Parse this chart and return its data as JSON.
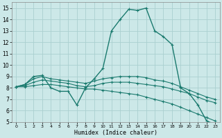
{
  "xlabel": "Humidex (Indice chaleur)",
  "ylabel": "",
  "bg_color": "#cce8e8",
  "grid_color": "#aad0d0",
  "line_color": "#1a7a6e",
  "xlim": [
    -0.5,
    23.5
  ],
  "ylim": [
    5,
    15.5
  ],
  "xticks": [
    0,
    1,
    2,
    3,
    4,
    5,
    6,
    7,
    8,
    9,
    10,
    11,
    12,
    13,
    14,
    15,
    16,
    17,
    18,
    19,
    20,
    21,
    22,
    23
  ],
  "yticks": [
    5,
    6,
    7,
    8,
    9,
    10,
    11,
    12,
    13,
    14,
    15
  ],
  "lines": [
    {
      "x": [
        0,
        1,
        2,
        3,
        4,
        5,
        6,
        7,
        8,
        9,
        10,
        11,
        12,
        13,
        14,
        15,
        16,
        17,
        18,
        19,
        20,
        21,
        22,
        23
      ],
      "y": [
        8.1,
        8.3,
        9.0,
        9.1,
        8.0,
        7.7,
        7.7,
        6.5,
        8.0,
        8.8,
        9.7,
        13.0,
        14.0,
        14.9,
        14.8,
        15.0,
        13.0,
        12.5,
        11.8,
        8.0,
        7.5,
        6.5,
        5.1,
        4.8
      ]
    },
    {
      "x": [
        0,
        1,
        2,
        3,
        4,
        5,
        6,
        7,
        8,
        9,
        10,
        11,
        12,
        13,
        14,
        15,
        16,
        17,
        18,
        19,
        20,
        21,
        22,
        23
      ],
      "y": [
        8.1,
        8.3,
        8.8,
        9.0,
        8.8,
        8.7,
        8.6,
        8.5,
        8.4,
        8.6,
        8.8,
        8.9,
        9.0,
        9.0,
        9.0,
        8.9,
        8.7,
        8.6,
        8.4,
        8.1,
        7.8,
        7.5,
        7.2,
        7.0
      ]
    },
    {
      "x": [
        0,
        1,
        2,
        3,
        4,
        5,
        6,
        7,
        8,
        9,
        10,
        11,
        12,
        13,
        14,
        15,
        16,
        17,
        18,
        19,
        20,
        21,
        22,
        23
      ],
      "y": [
        8.1,
        8.2,
        8.5,
        8.7,
        8.6,
        8.5,
        8.4,
        8.2,
        8.1,
        8.2,
        8.4,
        8.5,
        8.5,
        8.5,
        8.4,
        8.3,
        8.2,
        8.1,
        7.9,
        7.7,
        7.5,
        7.2,
        6.9,
        6.7
      ]
    },
    {
      "x": [
        0,
        1,
        2,
        3,
        4,
        5,
        6,
        7,
        8,
        9,
        10,
        11,
        12,
        13,
        14,
        15,
        16,
        17,
        18,
        19,
        20,
        21,
        22,
        23
      ],
      "y": [
        8.1,
        8.1,
        8.2,
        8.3,
        8.3,
        8.2,
        8.1,
        8.0,
        7.9,
        7.9,
        7.8,
        7.7,
        7.6,
        7.5,
        7.4,
        7.2,
        7.0,
        6.8,
        6.6,
        6.3,
        6.0,
        5.7,
        5.4,
        5.1
      ]
    }
  ]
}
